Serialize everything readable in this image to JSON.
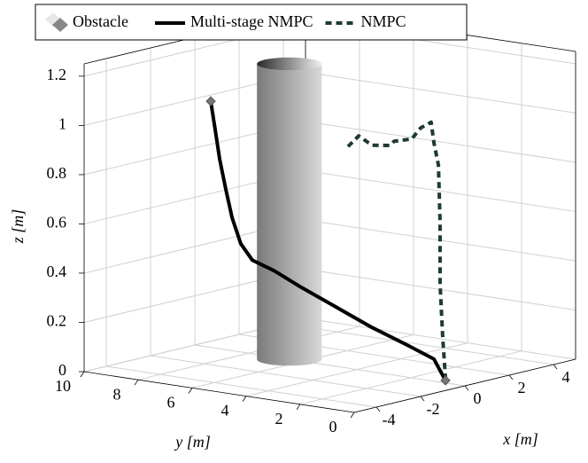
{
  "chart_data": {
    "type": "line3d",
    "xlabel": "x [m]",
    "ylabel": "y [m]",
    "zlabel": "z [m]",
    "xlim": [
      -5,
      5
    ],
    "ylim": [
      0,
      10
    ],
    "zlim": [
      0,
      1.25
    ],
    "xticks": [
      -4,
      -2,
      0,
      2,
      4
    ],
    "yticks": [
      0,
      2,
      4,
      6,
      8,
      10
    ],
    "zticks": [
      0,
      0.2,
      0.4,
      0.6,
      0.8,
      1,
      1.2
    ],
    "grid": true,
    "legend": "top-left",
    "obstacle": {
      "name": "Obstacle",
      "color": "#888888",
      "x": 0,
      "y": 6.5,
      "radius": 1.2,
      "height": 1.2
    },
    "series": [
      {
        "name": "Multi-stage NMPC",
        "color": "#000000",
        "line_style": "solid",
        "x": [
          0,
          0,
          0,
          0,
          0,
          0,
          0,
          0,
          0,
          0,
          0,
          0,
          0,
          0
        ],
        "y": [
          9.41,
          9.25,
          9.08,
          8.85,
          8.62,
          8.3,
          7.87,
          7.05,
          6.07,
          4.75,
          3.44,
          2.13,
          1.15,
          0.72
        ],
        "z": [
          1.0,
          0.89,
          0.77,
          0.65,
          0.54,
          0.44,
          0.38,
          0.35,
          0.3,
          0.24,
          0.18,
          0.13,
          0.09,
          0.01
        ]
      },
      {
        "name": "NMPC",
        "color": "#1f3a33",
        "line_style": "dashed",
        "x": [
          0,
          0,
          0,
          0,
          0,
          0,
          0,
          0,
          0,
          0,
          0,
          0,
          0,
          0
        ],
        "y": [
          4.33,
          3.93,
          3.44,
          2.79,
          2.62,
          1.97,
          1.64,
          1.25,
          1.15,
          0.98,
          0.92,
          0.92,
          0.82,
          0.72
        ],
        "z": [
          0.9,
          0.95,
          0.92,
          0.93,
          0.95,
          0.97,
          1.02,
          1.05,
          0.97,
          0.88,
          0.65,
          0.4,
          0.18,
          0.02
        ]
      }
    ]
  }
}
